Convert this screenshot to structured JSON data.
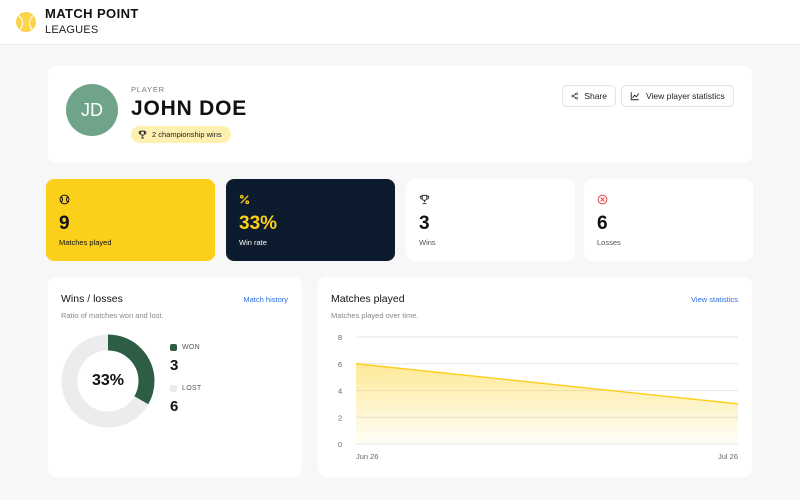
{
  "brand": {
    "title": "MATCH POINT",
    "subtitle": "LEAGUES",
    "logo_icon": "tennis-ball-icon"
  },
  "player": {
    "label": "PLAYER",
    "initials": "JD",
    "name": "JOHN DOE",
    "badge": "2 championship wins",
    "badge_icon": "trophy-icon",
    "actions": {
      "share": "Share",
      "view_stats": "View player statistics"
    }
  },
  "stats": [
    {
      "value": "9",
      "label": "Matches played",
      "icon": "ball-icon"
    },
    {
      "value": "33%",
      "label": "Win rate",
      "icon": "percent-icon"
    },
    {
      "value": "3",
      "label": "Wins",
      "icon": "trophy-icon"
    },
    {
      "value": "6",
      "label": "Losses",
      "icon": "x-circle-icon"
    }
  ],
  "wins_losses": {
    "title": "Wins / losses",
    "subtitle": "Ratio of matches won and lost.",
    "link": "Match history",
    "center_label": "33%",
    "won_label": "WON",
    "won_value": "3",
    "lost_label": "LOST",
    "lost_value": "6",
    "won_fraction": 0.333,
    "colors": {
      "won": "#2d5e45",
      "lost": "#ececee"
    }
  },
  "matches_played": {
    "title": "Matches played",
    "subtitle": "Matches played over time.",
    "link": "View statistics"
  },
  "colors": {
    "accent": "#fccf1a",
    "dark": "#0c1b2d",
    "link": "#2f6fdc",
    "avatar": "#6fa48a"
  },
  "chart_data": {
    "type": "area",
    "x": [
      "Jun 26",
      "Jul 26"
    ],
    "series": [
      {
        "values": [
          6,
          3
        ]
      }
    ],
    "yticks": [
      0,
      2,
      4,
      6,
      8
    ],
    "ylim": [
      0,
      8
    ],
    "xlabel": "",
    "ylabel": "",
    "grid": true,
    "color": "#fccf1a"
  }
}
